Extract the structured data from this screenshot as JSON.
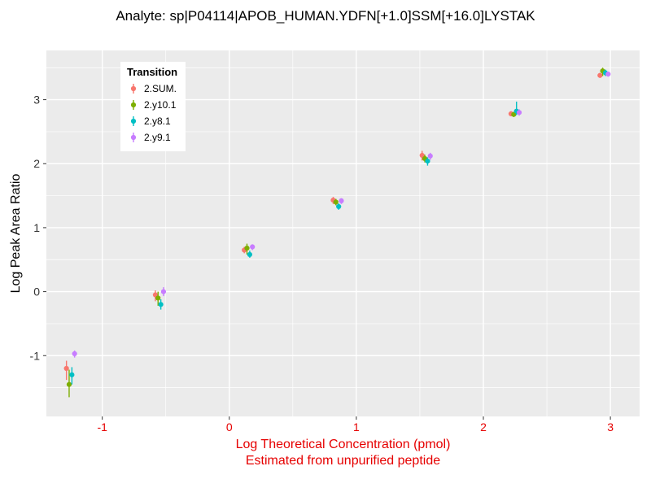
{
  "title": "Analyte: sp|P04114|APOB_HUMAN.YDFN[+1.0]SSM[+16.0]LYSTAK",
  "axes": {
    "y_label": "Log Peak Area Ratio",
    "x_label_line1": "Log Theoretical Concentration (pmol)",
    "x_label_line2": "Estimated from unpurified peptide",
    "x_label_color": "#e60000",
    "x_tick_color": "#e60000",
    "y_tick_color": "#333333"
  },
  "legend": {
    "title": "Transition",
    "items": [
      {
        "label": "2.SUM.",
        "color": "#F8766D"
      },
      {
        "label": "2.y10.1",
        "color": "#7CAE00"
      },
      {
        "label": "2.y8.1",
        "color": "#00BFC4"
      },
      {
        "label": "2.y9.1",
        "color": "#C77CFF"
      }
    ]
  },
  "chart_data": {
    "type": "scatter",
    "title": "Analyte: sp|P04114|APOB_HUMAN.YDFN[+1.0]SSM[+16.0]LYSTAK",
    "xlabel": "Log Theoretical Concentration (pmol) — Estimated from unpurified peptide",
    "ylabel": "Log Peak Area Ratio",
    "xlim": [
      -1.44,
      3.23
    ],
    "ylim": [
      -1.95,
      3.77
    ],
    "x_ticks": [
      -1,
      0,
      1,
      2,
      3
    ],
    "y_ticks": [
      -1,
      0,
      1,
      2,
      3
    ],
    "x_minor": [
      -0.5,
      0.5,
      1.5,
      2.5
    ],
    "y_minor": [
      -1.5,
      -0.5,
      0.5,
      1.5,
      2.5,
      3.5
    ],
    "panel_bg": "#EBEBEB",
    "grid_color": "#FFFFFF",
    "legend_position": "inside-top-left",
    "series": [
      {
        "name": "2.SUM.",
        "color": "#F8766D",
        "points": [
          {
            "x": -1.25,
            "y": -1.2,
            "ymin": -1.38,
            "ymax": -1.08
          },
          {
            "x": -0.55,
            "y": -0.05,
            "ymin": -0.15,
            "ymax": 0.02
          },
          {
            "x": 0.15,
            "y": 0.65,
            "ymin": 0.6,
            "ymax": 0.7
          },
          {
            "x": 0.85,
            "y": 1.43,
            "ymin": 1.37,
            "ymax": 1.48
          },
          {
            "x": 1.55,
            "y": 2.13,
            "ymin": 2.05,
            "ymax": 2.2
          },
          {
            "x": 2.25,
            "y": 2.78,
            "ymin": 2.74,
            "ymax": 2.82
          },
          {
            "x": 2.95,
            "y": 3.38,
            "ymin": 3.34,
            "ymax": 3.42
          }
        ]
      },
      {
        "name": "2.y10.1",
        "color": "#7CAE00",
        "points": [
          {
            "x": -1.25,
            "y": -1.45,
            "ymin": -1.65,
            "ymax": -1.22
          },
          {
            "x": -0.55,
            "y": -0.1,
            "ymin": -0.22,
            "ymax": 0.0
          },
          {
            "x": 0.15,
            "y": 0.68,
            "ymin": 0.58,
            "ymax": 0.75
          },
          {
            "x": 0.85,
            "y": 1.4,
            "ymin": 1.35,
            "ymax": 1.45
          },
          {
            "x": 1.55,
            "y": 2.08,
            "ymin": 2.02,
            "ymax": 2.14
          },
          {
            "x": 2.25,
            "y": 2.77,
            "ymin": 2.73,
            "ymax": 2.81
          },
          {
            "x": 2.95,
            "y": 3.45,
            "ymin": 3.37,
            "ymax": 3.5
          }
        ]
      },
      {
        "name": "2.y8.1",
        "color": "#00BFC4",
        "points": [
          {
            "x": -1.25,
            "y": -1.3,
            "ymin": -1.45,
            "ymax": -1.18
          },
          {
            "x": -0.55,
            "y": -0.2,
            "ymin": -0.28,
            "ymax": -0.12
          },
          {
            "x": 0.15,
            "y": 0.58,
            "ymin": 0.53,
            "ymax": 0.64
          },
          {
            "x": 0.85,
            "y": 1.33,
            "ymin": 1.28,
            "ymax": 1.38
          },
          {
            "x": 1.55,
            "y": 2.04,
            "ymin": 1.97,
            "ymax": 2.1
          },
          {
            "x": 2.25,
            "y": 2.82,
            "ymin": 2.76,
            "ymax": 2.97
          },
          {
            "x": 2.95,
            "y": 3.42,
            "ymin": 3.37,
            "ymax": 3.47
          }
        ]
      },
      {
        "name": "2.y9.1",
        "color": "#C77CFF",
        "points": [
          {
            "x": -1.25,
            "y": -0.97,
            "ymin": -1.03,
            "ymax": -0.92
          },
          {
            "x": -0.55,
            "y": 0.0,
            "ymin": -0.07,
            "ymax": 0.07
          },
          {
            "x": 0.15,
            "y": 0.7,
            "ymin": 0.65,
            "ymax": 0.74
          },
          {
            "x": 0.85,
            "y": 1.42,
            "ymin": 1.37,
            "ymax": 1.46
          },
          {
            "x": 1.55,
            "y": 2.12,
            "ymin": 2.06,
            "ymax": 2.17
          },
          {
            "x": 2.25,
            "y": 2.8,
            "ymin": 2.75,
            "ymax": 2.85
          },
          {
            "x": 2.95,
            "y": 3.4,
            "ymin": 3.36,
            "ymax": 3.44
          }
        ]
      }
    ]
  }
}
